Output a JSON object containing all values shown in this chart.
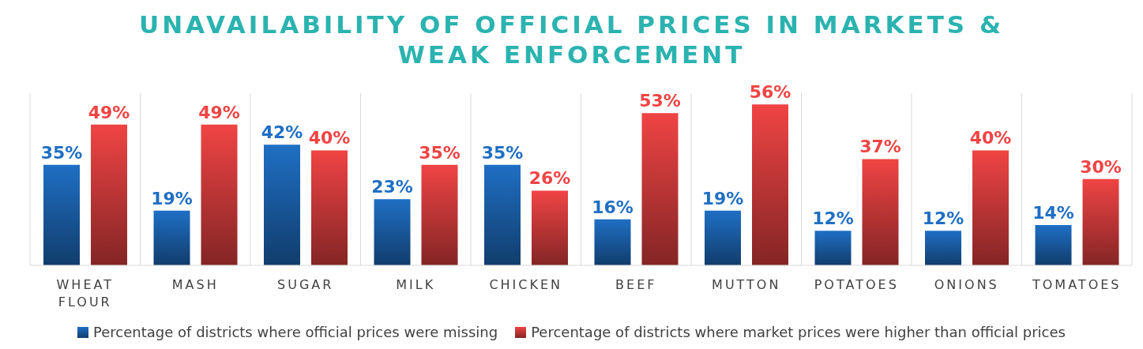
{
  "chart_data": {
    "type": "bar",
    "title": "UNAVAILABILITY OF OFFICIAL PRICES IN MARKETS & WEAK ENFORCEMENT",
    "categories": [
      "WHEAT FLOUR",
      "MASH",
      "SUGAR",
      "MILK",
      "CHICKEN",
      "BEEF",
      "MUTTON",
      "POTATOES",
      "ONIONS",
      "TOMATOES"
    ],
    "series": [
      {
        "name": "Percentage of districts where official prices were missing",
        "color": "#1f6fc4",
        "values": [
          35,
          19,
          42,
          23,
          35,
          16,
          19,
          12,
          12,
          14
        ],
        "value_labels": [
          "35%",
          "19%",
          "42%",
          "23%",
          "35%",
          "16%",
          "19%",
          "12%",
          "12%",
          "14%"
        ]
      },
      {
        "name": "Percentage of districts where market prices were higher than official prices",
        "color": "#f04444",
        "values": [
          49,
          49,
          40,
          35,
          26,
          53,
          56,
          37,
          40,
          30
        ],
        "value_labels": [
          "49%",
          "49%",
          "40%",
          "35%",
          "26%",
          "53%",
          "56%",
          "37%",
          "40%",
          "30%"
        ]
      }
    ],
    "grid": "x",
    "legend": "bottom"
  }
}
